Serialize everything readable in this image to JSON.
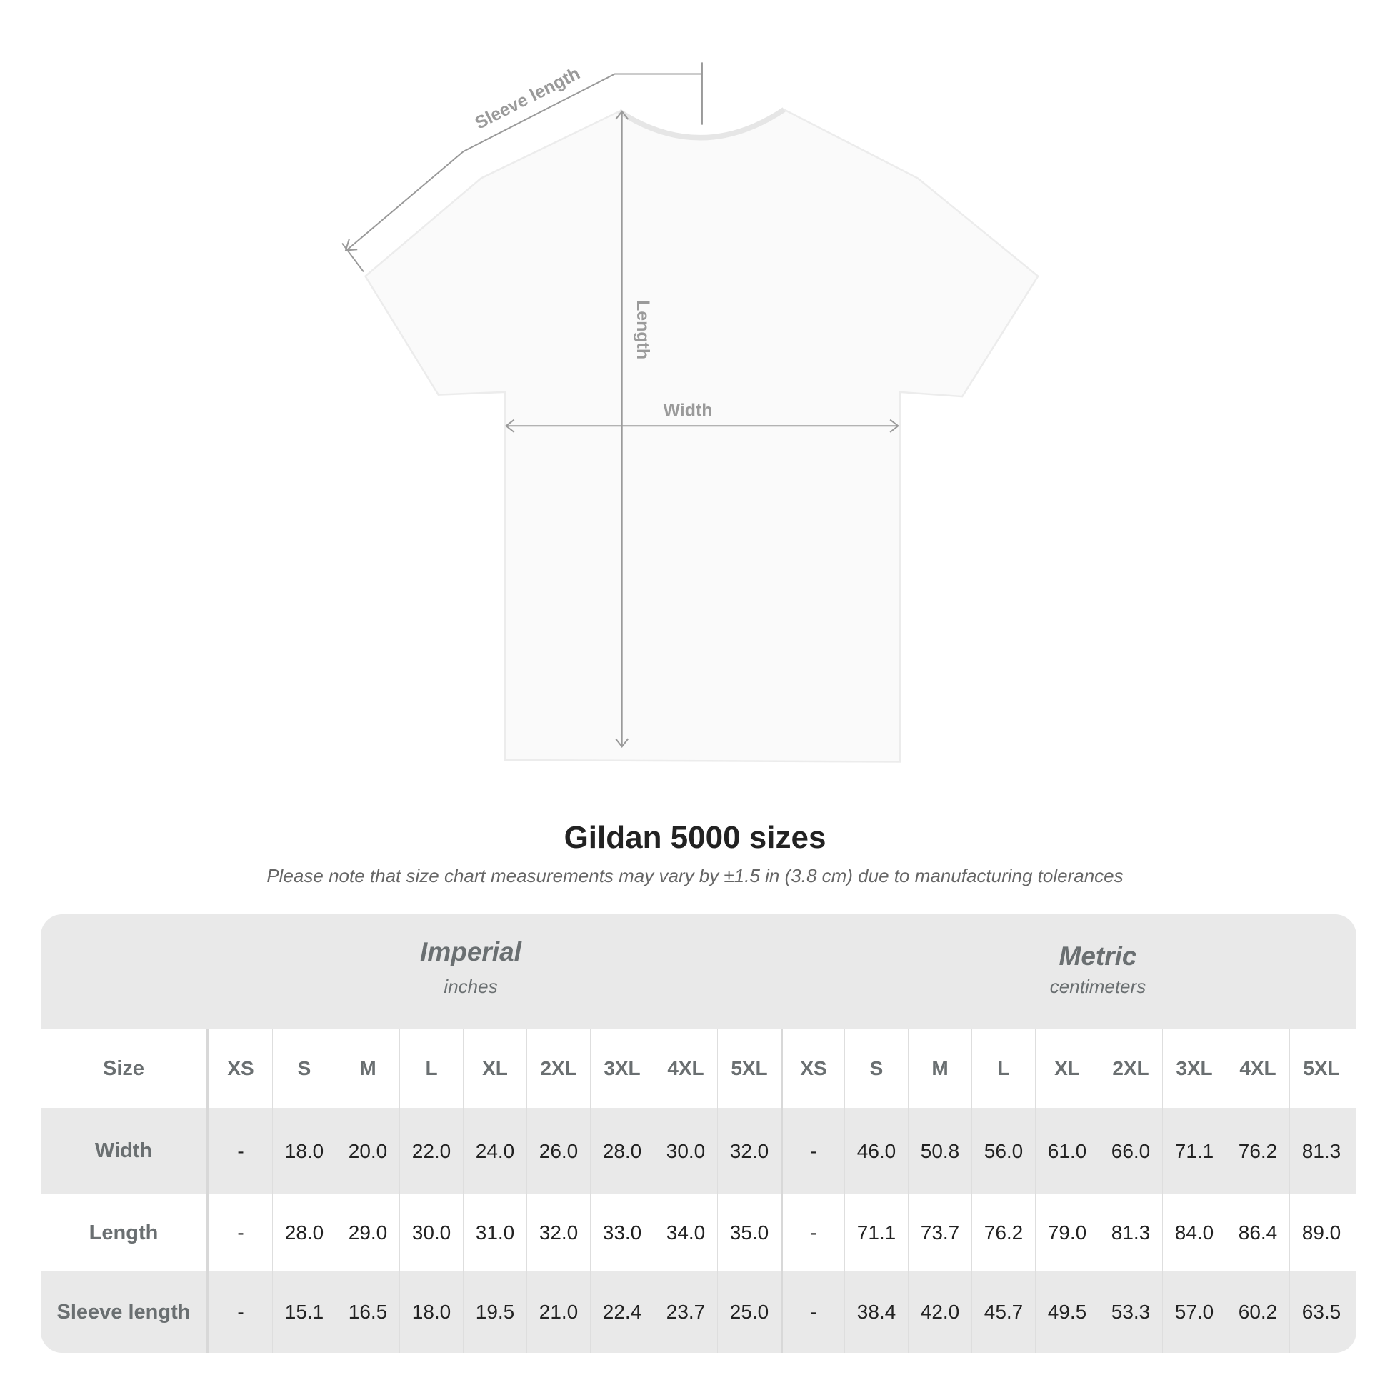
{
  "diagram": {
    "sleeve_label": "Sleeve length",
    "length_label": "Length",
    "width_label": "Width"
  },
  "title": "Gildan 5000 sizes",
  "note": "Please note that size chart measurements may vary by ±1.5 in (3.8 cm) due to manufacturing tolerances",
  "table": {
    "imperial": {
      "name": "Imperial",
      "unit": "inches"
    },
    "metric": {
      "name": "Metric",
      "unit": "centimeters"
    },
    "size_label": "Size",
    "sizes": [
      "XS",
      "S",
      "M",
      "L",
      "XL",
      "2XL",
      "3XL",
      "4XL",
      "5XL"
    ],
    "rows": [
      {
        "label": "Width",
        "imperial": [
          "-",
          "18.0",
          "20.0",
          "22.0",
          "24.0",
          "26.0",
          "28.0",
          "30.0",
          "32.0"
        ],
        "metric": [
          "-",
          "46.0",
          "50.8",
          "56.0",
          "61.0",
          "66.0",
          "71.1",
          "76.2",
          "81.3"
        ]
      },
      {
        "label": "Length",
        "imperial": [
          "-",
          "28.0",
          "29.0",
          "30.0",
          "31.0",
          "32.0",
          "33.0",
          "34.0",
          "35.0"
        ],
        "metric": [
          "-",
          "71.1",
          "73.7",
          "76.2",
          "79.0",
          "81.3",
          "84.0",
          "86.4",
          "89.0"
        ]
      },
      {
        "label": "Sleeve length",
        "imperial": [
          "-",
          "15.1",
          "16.5",
          "18.0",
          "19.5",
          "21.0",
          "22.4",
          "23.7",
          "25.0"
        ],
        "metric": [
          "-",
          "38.4",
          "42.0",
          "45.7",
          "49.5",
          "53.3",
          "57.0",
          "60.2",
          "63.5"
        ]
      }
    ]
  },
  "colors": {
    "header_bg": "#e9e9e9",
    "label_text": "#6a6f71",
    "arrow": "#999999"
  }
}
